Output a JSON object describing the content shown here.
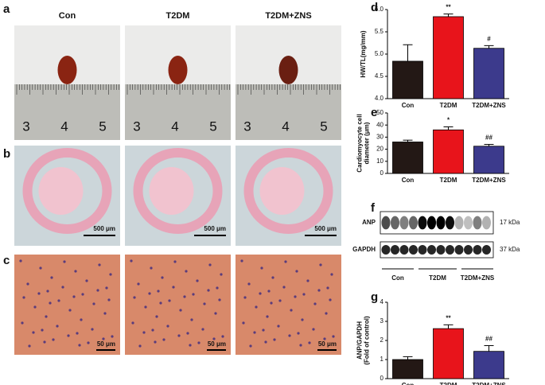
{
  "panel_labels": [
    "a",
    "b",
    "c",
    "d",
    "e",
    "f",
    "g"
  ],
  "photos": {
    "groups": [
      "Con",
      "T2DM",
      "T2DM+ZNS"
    ],
    "ruler_numbers": [
      "3",
      "4",
      "5"
    ],
    "scale_b": "500 μm",
    "scale_c": "50 μm"
  },
  "blot": {
    "rows": [
      "ANP",
      "GAPDH"
    ],
    "sizes": [
      "17 kDa",
      "37 kDa"
    ],
    "groups": [
      "Con",
      "T2DM",
      "T2DM+ZNS"
    ]
  },
  "chart_data": [
    {
      "type": "bar",
      "ylabel": [
        "HW/TL(mg/mm)"
      ],
      "categories": [
        "Con",
        "T2DM",
        "T2DM+ZNS"
      ],
      "values": [
        4.84,
        5.84,
        5.13
      ],
      "errors": [
        0.37,
        0.06,
        0.06
      ],
      "annotations": [
        null,
        "**",
        "#"
      ],
      "colors": [
        "#231815",
        "#e8141b",
        "#3c3a8c"
      ],
      "ylim": [
        4,
        6
      ],
      "yticks": [
        {
          "value": 4,
          "label": "4.0"
        },
        {
          "value": 4.5,
          "label": "4.5"
        },
        {
          "value": 5,
          "label": "5.0"
        },
        {
          "value": 5.5,
          "label": "5.5"
        },
        {
          "value": 6,
          "label": "6.0"
        }
      ]
    },
    {
      "type": "bar",
      "ylabel": [
        "Cardiomyocyte cell",
        "diameter (μm)"
      ],
      "categories": [
        "Con",
        "T2DM",
        "T2DM+ZNS"
      ],
      "values": [
        26,
        36,
        22.5
      ],
      "errors": [
        1.5,
        2.5,
        1.5
      ],
      "annotations": [
        null,
        "*",
        "##"
      ],
      "colors": [
        "#231815",
        "#e8141b",
        "#3c3a8c"
      ],
      "ylim": [
        0,
        50
      ],
      "yticks": [
        0,
        10,
        20,
        30,
        40,
        50
      ]
    },
    {
      "type": "bar",
      "ylabel": [
        "ANP/GAPDH",
        "(Fold of control)"
      ],
      "categories": [
        "Con",
        "T2DM",
        "T2DM+ZNS"
      ],
      "values": [
        1.0,
        2.62,
        1.43
      ],
      "errors": [
        0.15,
        0.2,
        0.3
      ],
      "annotations": [
        null,
        "**",
        "##"
      ],
      "colors": [
        "#231815",
        "#e8141b",
        "#3c3a8c"
      ],
      "ylim": [
        0,
        4
      ],
      "yticks": [
        0,
        1,
        2,
        3,
        4
      ]
    }
  ]
}
